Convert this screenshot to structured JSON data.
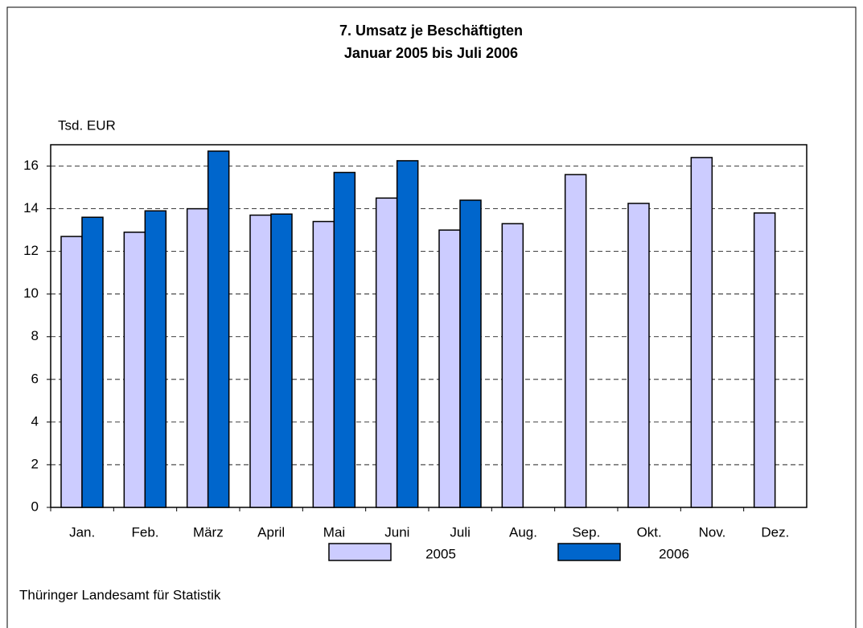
{
  "chart_data": {
    "type": "bar",
    "title": "7. Umsatz je Beschäftigten",
    "subtitle": "Januar 2005 bis Juli 2006",
    "y_label": "Tsd. EUR",
    "source": "Thüringer Landesamt für Statistik",
    "categories": [
      "Jan.",
      "Feb.",
      "März",
      "April",
      "Mai",
      "Juni",
      "Juli",
      "Aug.",
      "Sep.",
      "Okt.",
      "Nov.",
      "Dez."
    ],
    "series": [
      {
        "name": "2005",
        "color": "#ccccff",
        "values": [
          12.7,
          12.9,
          14.0,
          13.7,
          13.4,
          14.5,
          13.0,
          13.3,
          15.6,
          14.25,
          16.4,
          13.8
        ]
      },
      {
        "name": "2006",
        "color": "#0066cc",
        "values": [
          13.6,
          13.9,
          16.7,
          13.75,
          15.7,
          16.25,
          14.4,
          null,
          null,
          null,
          null,
          null
        ]
      }
    ],
    "ylim": [
      0,
      17
    ],
    "yticks": [
      0,
      2,
      4,
      6,
      8,
      10,
      12,
      14,
      16
    ],
    "grid": true
  }
}
